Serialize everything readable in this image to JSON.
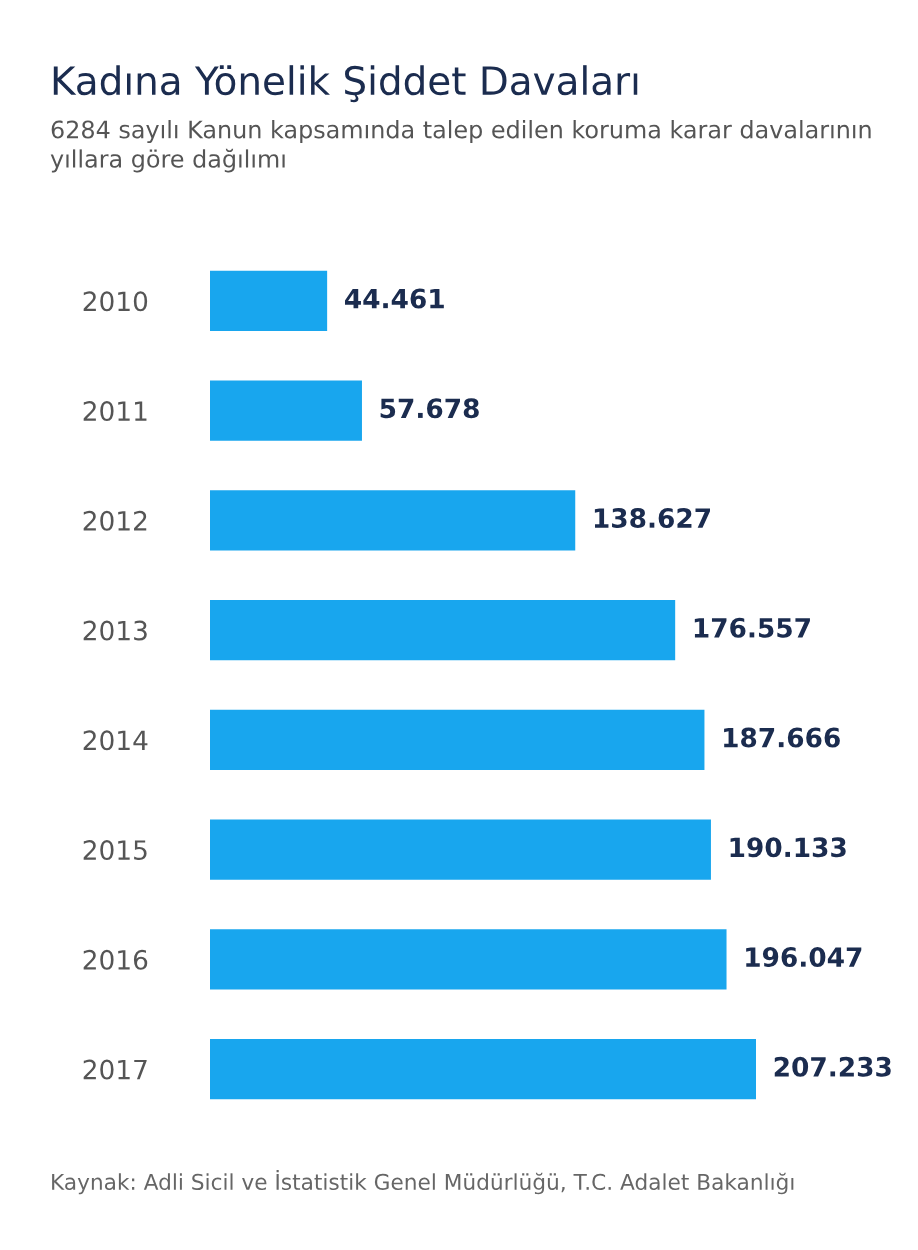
{
  "chart_data": {
    "type": "bar",
    "orientation": "horizontal",
    "title": "Kadına Yönelik Şiddet Davaları",
    "subtitle": "6284 sayılı Kanun kapsamında talep edilen koruma karar davalarının yıllara göre dağılımı",
    "categories": [
      "2010",
      "2011",
      "2012",
      "2013",
      "2014",
      "2015",
      "2016",
      "2017"
    ],
    "values": [
      44461,
      57678,
      138627,
      176557,
      187666,
      190133,
      196047,
      207233
    ],
    "value_labels": [
      "44.461",
      "57.678",
      "138.627",
      "176.557",
      "187.666",
      "190.133",
      "196.047",
      "207.233"
    ],
    "color": "#18a6ee",
    "grid": false,
    "legend": false,
    "tick_labels": "y",
    "annotations": [
      "Kaynak: Adli Sicil ve İstatistik Genel Müdürlüğü, T.C. Adalet Bakanlığı"
    ]
  }
}
